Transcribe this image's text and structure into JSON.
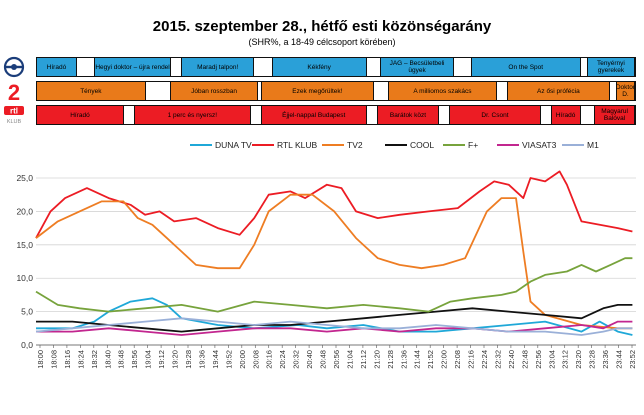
{
  "title": "2015. szeptember 28., hétfő esti közönségarány",
  "subtitle": "(SHR%, a 18-49 célcsoport körében)",
  "logos": {
    "m1": {
      "icon": "m1-channel-logo-icon"
    },
    "tv2": {
      "icon": "tv2-channel-logo-icon",
      "text": "2"
    },
    "rtl": {
      "icon": "rtl-klub-logo-icon",
      "text": "rtl",
      "subtext": "KLUB"
    }
  },
  "schedules": [
    {
      "channel": "M1",
      "color": "#2aa0d8",
      "blocks": [
        {
          "t0": 0,
          "t1": 11,
          "label": "Híradó"
        },
        {
          "t0": 11,
          "t1": 16,
          "label": ""
        },
        {
          "t0": 16,
          "t1": 37,
          "label": "Hegyi doktor – újra rendel"
        },
        {
          "t0": 37,
          "t1": 40,
          "label": ""
        },
        {
          "t0": 40,
          "t1": 60,
          "label": "Maradj talpon!"
        },
        {
          "t0": 60,
          "t1": 65,
          "label": ""
        },
        {
          "t0": 65,
          "t1": 91,
          "label": "Kékfény"
        },
        {
          "t0": 91,
          "t1": 95,
          "label": ""
        },
        {
          "t0": 95,
          "t1": 115,
          "label": "JAG – Becsületbeli ügyek"
        },
        {
          "t0": 115,
          "t1": 120,
          "label": ""
        },
        {
          "t0": 120,
          "t1": 150,
          "label": "On the Spot"
        },
        {
          "t0": 150,
          "t1": 152,
          "label": ""
        },
        {
          "t0": 152,
          "t1": 165,
          "label": "Tenyérnyi gyerekek"
        }
      ]
    },
    {
      "channel": "TV2",
      "color": "#e97a1a",
      "blocks": [
        {
          "t0": 0,
          "t1": 30,
          "label": "Tények"
        },
        {
          "t0": 30,
          "t1": 37,
          "label": ""
        },
        {
          "t0": 37,
          "t1": 61,
          "label": "Jóban rosszban"
        },
        {
          "t0": 61,
          "t1": 62,
          "label": ""
        },
        {
          "t0": 62,
          "t1": 93,
          "label": "Ezek megőrültek!"
        },
        {
          "t0": 93,
          "t1": 97,
          "label": ""
        },
        {
          "t0": 97,
          "t1": 127,
          "label": "A milliomos szakács"
        },
        {
          "t0": 127,
          "t1": 130,
          "label": ""
        },
        {
          "t0": 130,
          "t1": 158,
          "label": "Az ősi prófécia"
        },
        {
          "t0": 158,
          "t1": 160,
          "label": ""
        },
        {
          "t0": 160,
          "t1": 165,
          "label": "Doktor D."
        }
      ]
    },
    {
      "channel": "RTL Klub",
      "color": "#ec1c24",
      "blocks": [
        {
          "t0": 0,
          "t1": 24,
          "label": "Híradó"
        },
        {
          "t0": 24,
          "t1": 27,
          "label": ""
        },
        {
          "t0": 27,
          "t1": 59,
          "label": "1 perc és nyersz!"
        },
        {
          "t0": 59,
          "t1": 62,
          "label": ""
        },
        {
          "t0": 62,
          "t1": 91,
          "label": "Éjjel-nappal Budapest"
        },
        {
          "t0": 91,
          "t1": 94,
          "label": ""
        },
        {
          "t0": 94,
          "t1": 111,
          "label": "Barátok közt"
        },
        {
          "t0": 111,
          "t1": 114,
          "label": ""
        },
        {
          "t0": 114,
          "t1": 139,
          "label": "Dr. Csont"
        },
        {
          "t0": 139,
          "t1": 142,
          "label": ""
        },
        {
          "t0": 142,
          "t1": 150,
          "label": "Híradó"
        },
        {
          "t0": 150,
          "t1": 154,
          "label": ""
        },
        {
          "t0": 154,
          "t1": 165,
          "label": "Magyarul Balóval"
        }
      ]
    }
  ],
  "chart_data": {
    "type": "line",
    "ylim": [
      0,
      28
    ],
    "yticks": [
      "0,0",
      "5,0",
      "10,0",
      "15,0",
      "20,0",
      "25,0"
    ],
    "xticks": [
      "18:00",
      "18:08",
      "18:16",
      "18:24",
      "18:32",
      "18:40",
      "18:48",
      "18:56",
      "19:04",
      "19:12",
      "19:20",
      "19:28",
      "19:36",
      "19:44",
      "19:52",
      "20:00",
      "20:08",
      "20:16",
      "20:24",
      "20:32",
      "20:40",
      "20:48",
      "20:56",
      "21:04",
      "21:12",
      "21:20",
      "21:28",
      "21:36",
      "21:44",
      "21:52",
      "22:00",
      "22:08",
      "22:16",
      "22:24",
      "22:32",
      "22:40",
      "22:48",
      "22:56",
      "23:04",
      "23:12",
      "23:20",
      "23:28",
      "23:36",
      "23:44",
      "23:52"
    ],
    "grid": true,
    "legend": "top",
    "series": [
      {
        "name": "DUNA TV",
        "color": "#1fa8d8",
        "points": [
          [
            0,
            2.5
          ],
          [
            10,
            2.5
          ],
          [
            16,
            3.5
          ],
          [
            20,
            5
          ],
          [
            26,
            6.5
          ],
          [
            32,
            7
          ],
          [
            36,
            6
          ],
          [
            40,
            4
          ],
          [
            50,
            3
          ],
          [
            60,
            2.5
          ],
          [
            72,
            3
          ],
          [
            80,
            2.5
          ],
          [
            90,
            3
          ],
          [
            100,
            2
          ],
          [
            110,
            2
          ],
          [
            120,
            2.5
          ],
          [
            130,
            3
          ],
          [
            140,
            3.5
          ],
          [
            150,
            2
          ],
          [
            155,
            3.5
          ],
          [
            160,
            2
          ],
          [
            164,
            1.5
          ]
        ]
      },
      {
        "name": "RTL KLUB",
        "color": "#ec1c24",
        "points": [
          [
            0,
            16
          ],
          [
            4,
            20
          ],
          [
            8,
            22
          ],
          [
            14,
            23.5
          ],
          [
            20,
            22
          ],
          [
            26,
            21
          ],
          [
            30,
            19.5
          ],
          [
            34,
            20
          ],
          [
            38,
            18.5
          ],
          [
            44,
            19
          ],
          [
            50,
            17.5
          ],
          [
            56,
            16.5
          ],
          [
            60,
            19
          ],
          [
            64,
            22.5
          ],
          [
            70,
            23
          ],
          [
            74,
            22
          ],
          [
            80,
            24
          ],
          [
            84,
            23.5
          ],
          [
            88,
            20
          ],
          [
            94,
            19
          ],
          [
            100,
            19.5
          ],
          [
            108,
            20
          ],
          [
            116,
            20.5
          ],
          [
            122,
            23
          ],
          [
            126,
            24.5
          ],
          [
            130,
            24
          ],
          [
            134,
            22
          ],
          [
            136,
            25
          ],
          [
            140,
            24.5
          ],
          [
            144,
            26
          ],
          [
            146,
            24
          ],
          [
            150,
            18.5
          ],
          [
            160,
            17.5
          ],
          [
            164,
            17
          ]
        ]
      },
      {
        "name": "TV2",
        "color": "#ee7d23",
        "points": [
          [
            0,
            16
          ],
          [
            6,
            18.5
          ],
          [
            12,
            20
          ],
          [
            18,
            21.5
          ],
          [
            24,
            21.5
          ],
          [
            28,
            19
          ],
          [
            32,
            18
          ],
          [
            36,
            16
          ],
          [
            40,
            14
          ],
          [
            44,
            12
          ],
          [
            50,
            11.5
          ],
          [
            56,
            11.5
          ],
          [
            60,
            15
          ],
          [
            64,
            20
          ],
          [
            70,
            22.5
          ],
          [
            76,
            22.5
          ],
          [
            82,
            20
          ],
          [
            88,
            16
          ],
          [
            94,
            13
          ],
          [
            100,
            12
          ],
          [
            106,
            11.5
          ],
          [
            112,
            12
          ],
          [
            118,
            13
          ],
          [
            124,
            20
          ],
          [
            128,
            22
          ],
          [
            132,
            22
          ],
          [
            134,
            14
          ],
          [
            136,
            6.5
          ],
          [
            140,
            4.5
          ],
          [
            150,
            3
          ],
          [
            160,
            2.5
          ],
          [
            164,
            2.5
          ]
        ]
      },
      {
        "name": "COOL",
        "color": "#111111",
        "points": [
          [
            0,
            3.5
          ],
          [
            10,
            3.5
          ],
          [
            20,
            3
          ],
          [
            30,
            2.5
          ],
          [
            40,
            2
          ],
          [
            50,
            2.5
          ],
          [
            60,
            3
          ],
          [
            70,
            3
          ],
          [
            80,
            3.5
          ],
          [
            90,
            4
          ],
          [
            100,
            4.5
          ],
          [
            110,
            5
          ],
          [
            120,
            5.5
          ],
          [
            130,
            5
          ],
          [
            140,
            4.5
          ],
          [
            150,
            4
          ],
          [
            156,
            5.5
          ],
          [
            160,
            6
          ],
          [
            164,
            6
          ]
        ]
      },
      {
        "name": "F+",
        "color": "#77a33c",
        "points": [
          [
            0,
            8
          ],
          [
            6,
            6
          ],
          [
            12,
            5.5
          ],
          [
            20,
            5
          ],
          [
            30,
            5.5
          ],
          [
            40,
            6
          ],
          [
            50,
            5
          ],
          [
            60,
            6.5
          ],
          [
            70,
            6
          ],
          [
            80,
            5.5
          ],
          [
            90,
            6
          ],
          [
            100,
            5.5
          ],
          [
            108,
            5
          ],
          [
            114,
            6.5
          ],
          [
            120,
            7
          ],
          [
            128,
            7.5
          ],
          [
            132,
            8
          ],
          [
            136,
            9.5
          ],
          [
            140,
            10.5
          ],
          [
            146,
            11
          ],
          [
            150,
            12
          ],
          [
            154,
            11
          ],
          [
            158,
            12
          ],
          [
            162,
            13
          ],
          [
            164,
            13
          ]
        ]
      },
      {
        "name": "VIASAT3",
        "color": "#c2268f",
        "points": [
          [
            0,
            2
          ],
          [
            10,
            2
          ],
          [
            20,
            2.5
          ],
          [
            30,
            2
          ],
          [
            40,
            1.5
          ],
          [
            50,
            2
          ],
          [
            60,
            2.5
          ],
          [
            70,
            2.5
          ],
          [
            80,
            2
          ],
          [
            90,
            2.5
          ],
          [
            100,
            2
          ],
          [
            110,
            2.5
          ],
          [
            120,
            2.5
          ],
          [
            130,
            2
          ],
          [
            140,
            2.5
          ],
          [
            150,
            3
          ],
          [
            156,
            2.5
          ],
          [
            160,
            3.5
          ],
          [
            164,
            3.5
          ]
        ]
      },
      {
        "name": "M1",
        "color": "#9ab0d8",
        "points": [
          [
            0,
            2
          ],
          [
            10,
            2.5
          ],
          [
            20,
            3
          ],
          [
            30,
            3.5
          ],
          [
            40,
            4
          ],
          [
            50,
            3.5
          ],
          [
            60,
            3
          ],
          [
            70,
            3.5
          ],
          [
            80,
            3
          ],
          [
            90,
            2.5
          ],
          [
            100,
            2.5
          ],
          [
            110,
            3
          ],
          [
            120,
            2.5
          ],
          [
            130,
            2
          ],
          [
            140,
            2
          ],
          [
            150,
            1.5
          ],
          [
            156,
            2
          ],
          [
            160,
            2.5
          ],
          [
            164,
            2.5
          ]
        ]
      }
    ]
  }
}
